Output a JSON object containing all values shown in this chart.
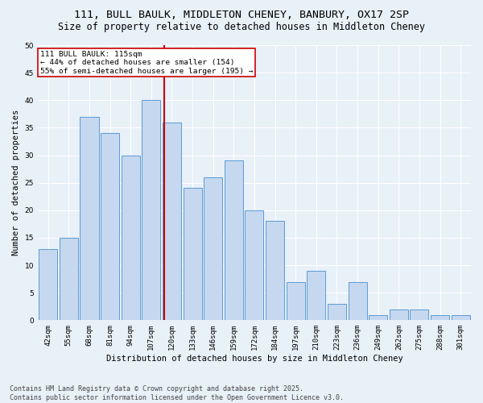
{
  "title1": "111, BULL BAULK, MIDDLETON CHENEY, BANBURY, OX17 2SP",
  "title2": "Size of property relative to detached houses in Middleton Cheney",
  "xlabel": "Distribution of detached houses by size in Middleton Cheney",
  "ylabel": "Number of detached properties",
  "categories": [
    "42sqm",
    "55sqm",
    "68sqm",
    "81sqm",
    "94sqm",
    "107sqm",
    "120sqm",
    "133sqm",
    "146sqm",
    "159sqm",
    "172sqm",
    "184sqm",
    "197sqm",
    "210sqm",
    "223sqm",
    "236sqm",
    "249sqm",
    "262sqm",
    "275sqm",
    "288sqm",
    "301sqm"
  ],
  "values": [
    13,
    15,
    37,
    34,
    30,
    40,
    36,
    24,
    26,
    29,
    20,
    18,
    7,
    9,
    3,
    7,
    1,
    2,
    2,
    1,
    1
  ],
  "bar_color": "#c5d8f0",
  "bar_edge_color": "#5b9bd5",
  "vline_color": "#cc0000",
  "annotation_title": "111 BULL BAULK: 115sqm",
  "annotation_line2": "← 44% of detached houses are smaller (154)",
  "annotation_line3": "55% of semi-detached houses are larger (195) →",
  "annotation_box_color": "#ffffff",
  "annotation_box_edgecolor": "#cc0000",
  "ylim": [
    0,
    50
  ],
  "yticks": [
    0,
    5,
    10,
    15,
    20,
    25,
    30,
    35,
    40,
    45,
    50
  ],
  "footer1": "Contains HM Land Registry data © Crown copyright and database right 2025.",
  "footer2": "Contains public sector information licensed under the Open Government Licence v3.0.",
  "bg_color": "#e8f0f8",
  "plot_bg_color": "#e8f0f8",
  "grid_color": "#ffffff",
  "title_fontsize": 9.5,
  "subtitle_fontsize": 8.5,
  "axis_label_fontsize": 7.5,
  "tick_fontsize": 6.5,
  "annotation_fontsize": 6.8,
  "footer_fontsize": 6.0
}
